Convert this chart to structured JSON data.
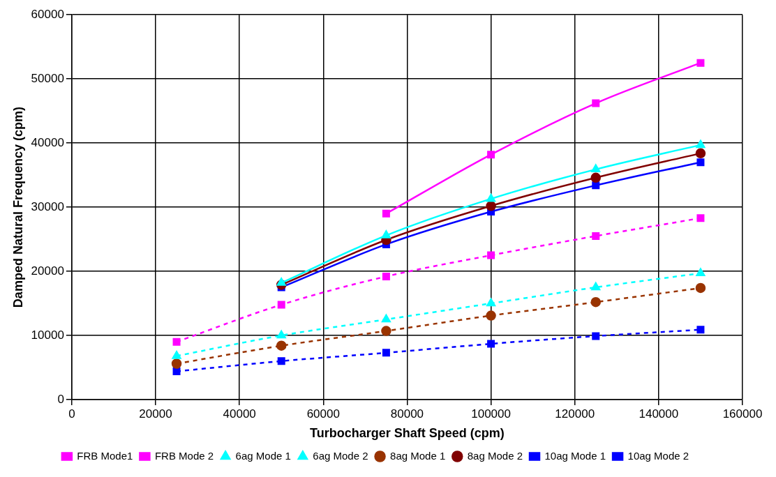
{
  "chart_data": {
    "type": "line",
    "xlabel": "Turbocharger Shaft Speed (cpm)",
    "ylabel": "Damped Natural Frequency (cpm)",
    "x": [
      25000,
      50000,
      75000,
      100000,
      125000,
      150000
    ],
    "xlim": [
      0,
      160000
    ],
    "xticks": [
      0,
      20000,
      40000,
      60000,
      80000,
      100000,
      120000,
      140000,
      160000
    ],
    "ylim": [
      0,
      60000
    ],
    "yticks": [
      0,
      10000,
      20000,
      30000,
      40000,
      50000,
      60000
    ],
    "grid": true,
    "legend": "bottom",
    "series": [
      {
        "name": "FRB Mode1",
        "color": "#ff00ff",
        "line_style": "dashed",
        "marker": "square",
        "values": [
          9000,
          14800,
          19200,
          22500,
          25500,
          28300
        ]
      },
      {
        "name": "FRB Mode 2",
        "color": "#ff00ff",
        "line_style": "solid",
        "marker": "square",
        "values": [
          null,
          null,
          29000,
          38200,
          46200,
          52500
        ]
      },
      {
        "name": "6ag Mode 1",
        "color": "#00ffff",
        "line_style": "dashed",
        "marker": "triangle",
        "values": [
          6800,
          10000,
          12500,
          15000,
          17500,
          19700
        ]
      },
      {
        "name": "6ag Mode 2",
        "color": "#00ffff",
        "line_style": "solid",
        "marker": "triangle",
        "values": [
          null,
          18200,
          25600,
          31300,
          35900,
          39700
        ]
      },
      {
        "name": "8ag Mode 1",
        "color": "#993300",
        "line_style": "dashed",
        "marker": "circle",
        "values": [
          5600,
          8400,
          10700,
          13100,
          15200,
          17400
        ]
      },
      {
        "name": "8ag Mode 2",
        "color": "#800000",
        "line_style": "solid",
        "marker": "circle",
        "values": [
          null,
          17900,
          24900,
          30200,
          34600,
          38400
        ]
      },
      {
        "name": "10ag Mode 1",
        "color": "#0000ff",
        "line_style": "dashed",
        "marker": "square",
        "values": [
          4400,
          6000,
          7300,
          8700,
          9900,
          10900
        ]
      },
      {
        "name": "10ag Mode 2",
        "color": "#0000ff",
        "line_style": "solid",
        "marker": "square",
        "values": [
          null,
          17500,
          24200,
          29300,
          33400,
          37000
        ]
      }
    ]
  }
}
